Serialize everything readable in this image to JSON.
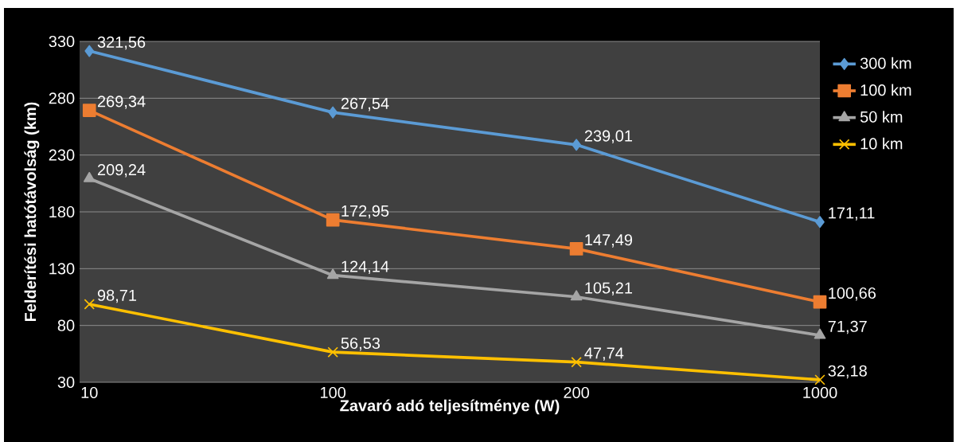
{
  "chart_data": {
    "type": "line",
    "xlabel": "Zavaró adó teljesítménye (W)",
    "ylabel": "Felderítési hatótávolság (km)",
    "categories": [
      "10",
      "100",
      "200",
      "1000"
    ],
    "ylim": [
      30,
      330
    ],
    "yticks": [
      30,
      80,
      130,
      180,
      230,
      280,
      330
    ],
    "grid": "y",
    "legend": "right",
    "series": [
      {
        "name": "300 km",
        "color": "#5b9bd5",
        "marker": "diamond",
        "values": [
          321.56,
          267.54,
          239.01,
          171.11
        ],
        "value_labels": [
          "321,56",
          "267,54",
          "239,01",
          "171,11"
        ]
      },
      {
        "name": "100 km",
        "color": "#ed7d31",
        "marker": "square",
        "values": [
          269.34,
          172.95,
          147.49,
          100.66
        ],
        "value_labels": [
          "269,34",
          "172,95",
          "147,49",
          "100,66"
        ]
      },
      {
        "name": "50 km",
        "color": "#a5a5a5",
        "marker": "triangle",
        "values": [
          209.24,
          124.14,
          105.21,
          71.37
        ],
        "value_labels": [
          "209,24",
          "124,14",
          "105,21",
          "71,37"
        ]
      },
      {
        "name": "10 km",
        "color": "#ffc000",
        "marker": "cross",
        "values": [
          98.71,
          56.53,
          47.74,
          32.18
        ],
        "value_labels": [
          "98,71",
          "56,53",
          "47,74",
          "32,18"
        ]
      }
    ]
  }
}
